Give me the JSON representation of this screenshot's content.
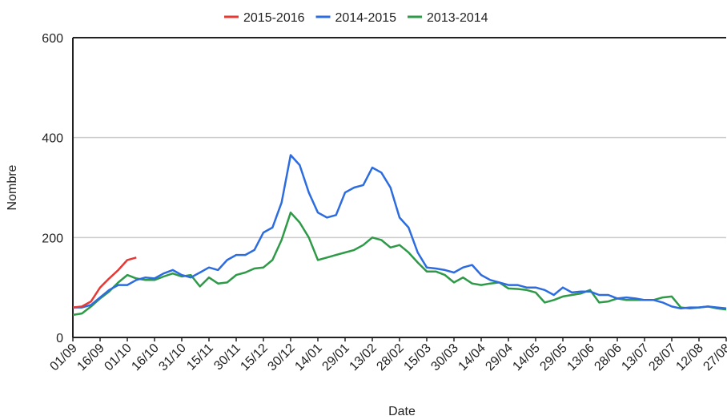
{
  "chart_data": {
    "type": "line",
    "x_label": "Date",
    "y_label": "Nombre",
    "categories": [
      "01/09",
      null,
      null,
      "16/09",
      null,
      null,
      "01/10",
      null,
      null,
      "16/10",
      null,
      null,
      "31/10",
      null,
      null,
      "15/11",
      null,
      null,
      "30/11",
      null,
      null,
      "15/12",
      null,
      null,
      "30/12",
      null,
      null,
      "14/01",
      null,
      null,
      "29/01",
      null,
      null,
      "13/02",
      null,
      null,
      "28/02",
      null,
      null,
      "15/03",
      null,
      null,
      "30/03",
      null,
      null,
      "14/04",
      null,
      null,
      "29/04",
      null,
      null,
      "14/05",
      null,
      null,
      "29/05",
      null,
      null,
      "13/06",
      null,
      null,
      "28/06",
      null,
      null,
      "13/07",
      null,
      null,
      "28/07",
      null,
      null,
      "12/08",
      null,
      null,
      "27/08"
    ],
    "series": [
      {
        "name": "2015-2016",
        "color": "#e53935",
        "values": [
          60,
          62,
          72,
          100,
          118,
          135,
          155,
          160,
          null,
          null,
          null,
          null,
          null,
          null,
          null,
          null,
          null,
          null,
          null,
          null,
          null,
          null,
          null,
          null,
          null,
          null,
          null,
          null,
          null,
          null,
          null,
          null,
          null,
          null,
          null,
          null,
          null,
          null,
          null,
          null,
          null,
          null,
          null,
          null,
          null,
          null,
          null,
          null,
          null,
          null,
          null,
          null,
          null,
          null,
          null,
          null,
          null,
          null,
          null,
          null,
          null,
          null,
          null,
          null,
          null,
          null,
          null,
          null,
          null,
          null,
          null,
          null,
          null
        ]
      },
      {
        "name": "2014-2015",
        "color": "#2d6cdf",
        "values": [
          60,
          60,
          65,
          80,
          95,
          105,
          105,
          115,
          120,
          118,
          128,
          135,
          125,
          120,
          130,
          140,
          135,
          155,
          165,
          165,
          175,
          210,
          220,
          270,
          365,
          345,
          290,
          250,
          240,
          245,
          290,
          300,
          305,
          340,
          330,
          300,
          240,
          220,
          170,
          140,
          138,
          135,
          130,
          140,
          145,
          125,
          115,
          110,
          105,
          105,
          100,
          100,
          95,
          85,
          100,
          90,
          92,
          92,
          85,
          85,
          78,
          80,
          78,
          75,
          75,
          70,
          62,
          58,
          60,
          60,
          62,
          60,
          58
        ]
      },
      {
        "name": "2013-2014",
        "color": "#2e9a48",
        "values": [
          45,
          48,
          62,
          78,
          92,
          110,
          125,
          118,
          115,
          115,
          122,
          128,
          122,
          125,
          102,
          120,
          108,
          110,
          125,
          130,
          138,
          140,
          155,
          195,
          250,
          230,
          200,
          155,
          160,
          165,
          170,
          175,
          185,
          200,
          195,
          180,
          185,
          170,
          150,
          132,
          132,
          125,
          110,
          120,
          108,
          105,
          108,
          110,
          98,
          97,
          95,
          90,
          70,
          75,
          82,
          85,
          88,
          95,
          70,
          72,
          78,
          75,
          75,
          75,
          75,
          80,
          82,
          60,
          58,
          60,
          62,
          58,
          56
        ]
      }
    ],
    "ylim": [
      0,
      600
    ],
    "yticks": [
      0,
      200,
      400,
      600
    ],
    "grid": true
  }
}
